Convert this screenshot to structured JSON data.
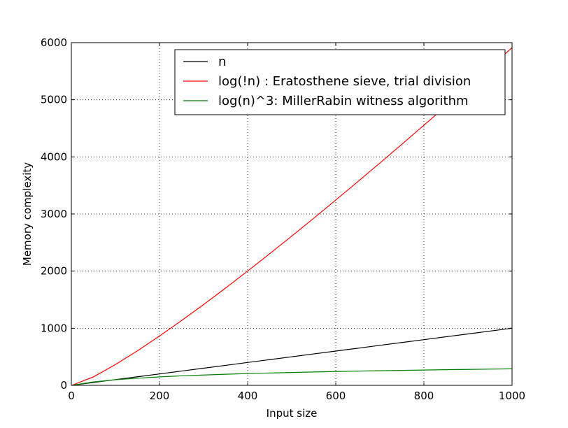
{
  "chart_data": {
    "type": "line",
    "xlabel": "Input size",
    "ylabel": "Memory complexity",
    "xlim": [
      0,
      1000
    ],
    "ylim": [
      0,
      6000
    ],
    "x_ticks": [
      0,
      200,
      400,
      600,
      800,
      1000
    ],
    "y_ticks": [
      0,
      1000,
      2000,
      3000,
      4000,
      5000,
      6000
    ],
    "grid": true,
    "legend_position": "top-right",
    "x": [
      1,
      50,
      100,
      150,
      200,
      250,
      300,
      350,
      400,
      450,
      500,
      550,
      600,
      650,
      700,
      750,
      800,
      850,
      900,
      950,
      1000
    ],
    "series": [
      {
        "name": "n",
        "color": "#000000",
        "values": [
          1,
          50,
          100,
          150,
          200,
          250,
          300,
          350,
          400,
          450,
          500,
          550,
          600,
          650,
          700,
          750,
          800,
          850,
          900,
          950,
          1000
        ]
      },
      {
        "name": "log(!n) : Eratosthene sieve, trial division",
        "color": "#ff0000",
        "values": [
          0,
          148,
          364,
          605,
          863,
          1134,
          1414,
          1704,
          2001,
          2304,
          2612,
          2926,
          3244,
          3566,
          3892,
          4221,
          4554,
          4889,
          5227,
          5568,
          5912
        ]
      },
      {
        "name": "log(n)^3: MillerRabin witness algorithm",
        "color": "#008000",
        "values": [
          0,
          60,
          98,
          125,
          148,
          166,
          181,
          194,
          206,
          216,
          225,
          234,
          242,
          249,
          256,
          262,
          268,
          274,
          279,
          284,
          289
        ]
      }
    ]
  }
}
